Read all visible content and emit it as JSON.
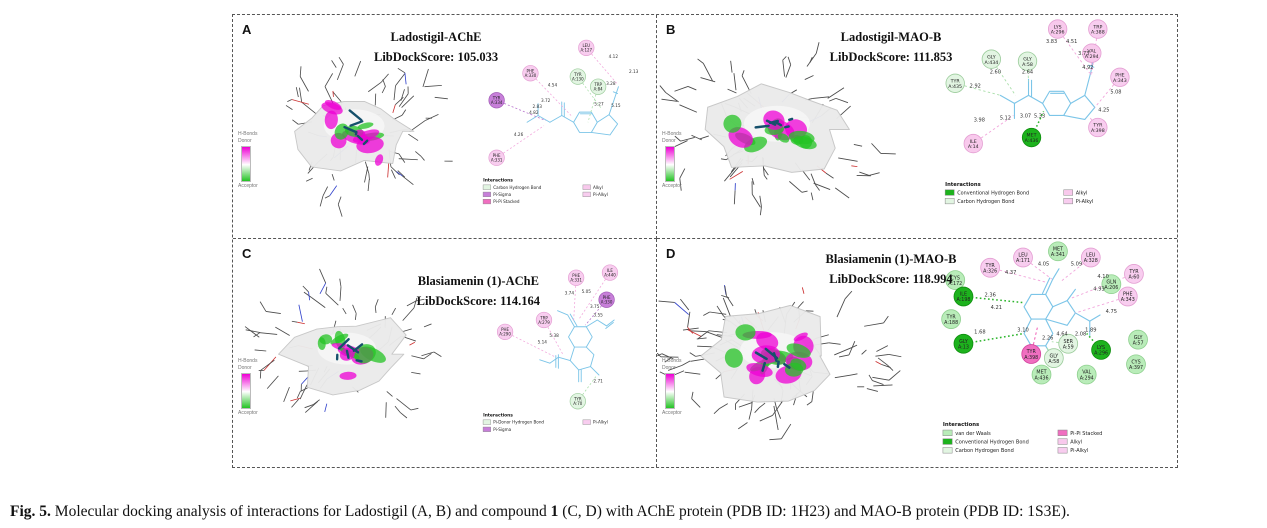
{
  "caption": {
    "label": "Fig. 5.",
    "text1": " Molecular docking analysis of interactions for Ladostigil (A, B) and compound ",
    "bold1": "1",
    "text2": " (C, D) with AChE protein (PDB ID: 1H23) and MAO-B protein (PDB ID: 1S3E)."
  },
  "hbond_scale": {
    "title": "H-Bonds",
    "donor": "Donor",
    "acceptor": "Acceptor"
  },
  "colors": {
    "surface_donor": "#ee00d4",
    "surface_acceptor": "#24c324",
    "ligand_2d": "#7cc5e8",
    "ligand_3d": "#15506b",
    "types": {
      "carbon-h": {
        "fill": "#e2f5e2",
        "stroke": "#9ccc9c",
        "dash": "#aadfaa"
      },
      "pi-donor-h": {
        "fill": "#e2f5e2",
        "stroke": "#9ccc9c",
        "dash": "#aadfaa"
      },
      "conventional-h": {
        "fill": "#1db21d",
        "stroke": "#0f8f0f",
        "dash": "#2db52d"
      },
      "vdw": {
        "fill": "#b9ecb9",
        "stroke": "#8fd08f",
        "dash": ""
      },
      "pi-sigma": {
        "fill": "#c77fd9",
        "stroke": "#a05ab5",
        "dash": "#b670cc"
      },
      "pi-pi": {
        "fill": "#f06ec0",
        "stroke": "#d4449e",
        "dash": "#ee4fae"
      },
      "alkyl": {
        "fill": "#f8c9ec",
        "stroke": "#e49fd3",
        "dash": "#f2a7dc"
      },
      "pi-alkyl": {
        "fill": "#f8cdef",
        "stroke": "#e49fd3",
        "dash": "#f2a7dc"
      }
    }
  },
  "panels": [
    {
      "label": "A",
      "title": "Ladostigil-AChE",
      "score_label": "LibDockScore: 105.033",
      "residues": [
        {
          "name": "LEU",
          "pos": "A:127",
          "type": "pi-alkyl"
        },
        {
          "name": "PHE",
          "pos": "A:330",
          "type": "pi-alkyl"
        },
        {
          "name": "TYR",
          "pos": "A:130",
          "type": "carbon-h"
        },
        {
          "name": "TRP",
          "pos": "A:84",
          "type": "carbon-h"
        },
        {
          "name": "TYR",
          "pos": "A:334",
          "type": "pi-sigma"
        },
        {
          "name": "PHE",
          "pos": "A:331",
          "type": "pi-alkyl"
        }
      ],
      "distances": [
        "4.12",
        "2.13",
        "3.28",
        "4.54",
        "3.72",
        "2.83",
        "4.82",
        "5.27",
        "5.15",
        "4.26"
      ],
      "legend": {
        "title": "Interactions",
        "left": [
          {
            "label": "Carbon Hydrogen Bond",
            "color": "#e2f5e2"
          },
          {
            "label": "Pi-Sigma",
            "color": "#c77fd9"
          },
          {
            "label": "Pi-Pi Stacked",
            "color": "#f06ec0"
          }
        ],
        "right": [
          {
            "label": "Alkyl",
            "color": "#f8c9ec"
          },
          {
            "label": "Pi-Alkyl",
            "color": "#f8cdef"
          }
        ]
      }
    },
    {
      "label": "B",
      "title": "Ladostigil-MAO-B",
      "score_label": "LibDockScore: 111.853",
      "residues": [
        {
          "name": "LYS",
          "pos": "A:296",
          "type": "alkyl"
        },
        {
          "name": "TRP",
          "pos": "A:388",
          "type": "pi-alkyl"
        },
        {
          "name": "VAL",
          "pos": "A:294",
          "type": "alkyl"
        },
        {
          "name": "PHE",
          "pos": "A:343",
          "type": "pi-alkyl"
        },
        {
          "name": "GLY",
          "pos": "A:434",
          "type": "carbon-h"
        },
        {
          "name": "GLY",
          "pos": "A:58",
          "type": "carbon-h"
        },
        {
          "name": "TYR",
          "pos": "A:435",
          "type": "carbon-h"
        },
        {
          "name": "ILE",
          "pos": "A:14",
          "type": "alkyl"
        },
        {
          "name": "MET",
          "pos": "A:436",
          "type": "conventional-h"
        },
        {
          "name": "TYR",
          "pos": "A:398",
          "type": "pi-alkyl"
        }
      ],
      "distances": [
        "3.83",
        "4.51",
        "3.73",
        "4.92",
        "5.08",
        "4.25",
        "2.60",
        "2.64",
        "2.92",
        "3.98",
        "5.12",
        "3.07",
        "5.33"
      ],
      "legend": {
        "title": "Interactions",
        "left": [
          {
            "label": "Conventional Hydrogen Bond",
            "color": "#1db21d"
          },
          {
            "label": "Carbon Hydrogen Bond",
            "color": "#e2f5e2"
          }
        ],
        "right": [
          {
            "label": "Alkyl",
            "color": "#f8c9ec"
          },
          {
            "label": "Pi-Alkyl",
            "color": "#f8cdef"
          }
        ]
      }
    },
    {
      "label": "C",
      "title": "Blasiamenin (1)-AChE",
      "score_label": "LibDockScore: 114.164",
      "residues": [
        {
          "name": "PHE",
          "pos": "A:331",
          "type": "pi-alkyl"
        },
        {
          "name": "ILE",
          "pos": "A:440",
          "type": "pi-alkyl"
        },
        {
          "name": "PHE",
          "pos": "A:330",
          "type": "pi-sigma"
        },
        {
          "name": "TRP",
          "pos": "A:279",
          "type": "pi-alkyl"
        },
        {
          "name": "PHE",
          "pos": "A:290",
          "type": "pi-alkyl"
        },
        {
          "name": "TYR",
          "pos": "A:70",
          "type": "pi-donor-h"
        }
      ],
      "distances": [
        "3.74",
        "5.05",
        "3.75",
        "3.55",
        "5.38",
        "5.14",
        "2.71"
      ],
      "legend": {
        "title": "Interactions",
        "left": [
          {
            "label": "Pi-Donor Hydrogen Bond",
            "color": "#e2f5e2"
          },
          {
            "label": "Pi-Sigma",
            "color": "#c77fd9"
          }
        ],
        "right": [
          {
            "label": "Pi-Alkyl",
            "color": "#f8cdef"
          }
        ]
      }
    },
    {
      "label": "D",
      "title": "Blasiamenin (1)-MAO-B",
      "score_label": "LibDockScore: 118.994",
      "residues": [
        {
          "name": "MET",
          "pos": "A:341",
          "type": "vdw"
        },
        {
          "name": "LEU",
          "pos": "A:171",
          "type": "pi-alkyl"
        },
        {
          "name": "LEU",
          "pos": "A:328",
          "type": "pi-alkyl"
        },
        {
          "name": "TYR",
          "pos": "A:326",
          "type": "pi-alkyl"
        },
        {
          "name": "TYR",
          "pos": "A:60",
          "type": "pi-alkyl"
        },
        {
          "name": "CYS",
          "pos": "A:172",
          "type": "vdw"
        },
        {
          "name": "GLN",
          "pos": "A:206",
          "type": "vdw"
        },
        {
          "name": "PHE",
          "pos": "A:343",
          "type": "pi-alkyl"
        },
        {
          "name": "ILE",
          "pos": "A:198",
          "type": "conventional-h"
        },
        {
          "name": "TYR",
          "pos": "A:188",
          "type": "vdw"
        },
        {
          "name": "GLY",
          "pos": "A:13",
          "type": "conventional-h"
        },
        {
          "name": "TYR",
          "pos": "A:398",
          "type": "pi-pi"
        },
        {
          "name": "SER",
          "pos": "A:59",
          "type": "carbon-h"
        },
        {
          "name": "GLY",
          "pos": "A:58",
          "type": "carbon-h"
        },
        {
          "name": "LYS",
          "pos": "A:296",
          "type": "conventional-h"
        },
        {
          "name": "GLY",
          "pos": "A:57",
          "type": "vdw"
        },
        {
          "name": "CYS",
          "pos": "A:397",
          "type": "vdw"
        },
        {
          "name": "MET",
          "pos": "A:436",
          "type": "vdw"
        },
        {
          "name": "VAL",
          "pos": "A:294",
          "type": "vdw"
        }
      ],
      "distances": [
        "4.05",
        "4.37",
        "5.09",
        "4.10",
        "4.93",
        "2.36",
        "4.21",
        "4.75",
        "1.68",
        "3.10",
        "2.26",
        "4.64",
        "2.08",
        "1.89"
      ],
      "legend": {
        "title": "Interactions",
        "left": [
          {
            "label": "van der Waals",
            "color": "#b9ecb9"
          },
          {
            "label": "Conventional Hydrogen Bond",
            "color": "#1db21d"
          },
          {
            "label": "Carbon Hydrogen Bond",
            "color": "#e2f5e2"
          }
        ],
        "right": [
          {
            "label": "Pi-Pi Stacked",
            "color": "#f06ec0"
          },
          {
            "label": "Alkyl",
            "color": "#f8c9ec"
          },
          {
            "label": "Pi-Alkyl",
            "color": "#f8cdef"
          }
        ]
      }
    }
  ]
}
